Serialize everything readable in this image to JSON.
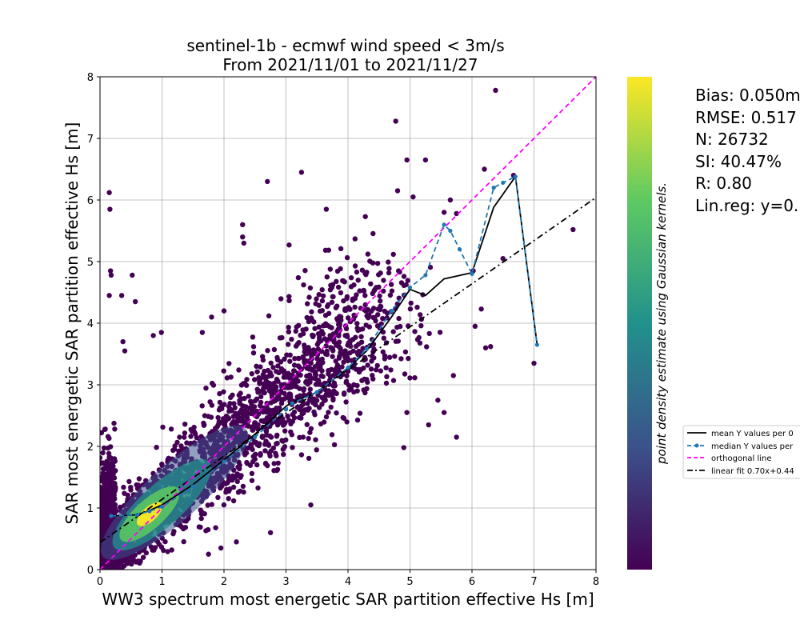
{
  "chart_data": {
    "type": "scatter",
    "title_line1": "sentinel-1b - ecmwf wind speed < 3m/s",
    "title_line2": "From 2021/11/01 to 2021/11/27",
    "xlabel": "WW3 spectrum most energetic SAR partition effective Hs [m]",
    "ylabel": "SAR most energetic SAR partition effective Hs [m]",
    "xlim": [
      0,
      8
    ],
    "ylim": [
      0,
      8
    ],
    "xticks": [
      "0",
      "1",
      "2",
      "3",
      "4",
      "5",
      "6",
      "7",
      "8"
    ],
    "yticks": [
      "0",
      "1",
      "2",
      "3",
      "4",
      "5",
      "6",
      "7",
      "8"
    ],
    "grid": true,
    "colorbar_label": "point density estimate using Gaussian kernels.",
    "colormap": [
      "#440154",
      "#3b528b",
      "#21918c",
      "#5ec962",
      "#fde725"
    ],
    "density_peak": {
      "x": 0.8,
      "y": 0.9
    },
    "point_count": 26732,
    "series": [
      {
        "name": "mean Y values per 0",
        "color": "#000000",
        "style": "solid",
        "points": [
          [
            0.18,
            0.87
          ],
          [
            0.6,
            0.89
          ],
          [
            0.8,
            0.96
          ],
          [
            1.0,
            1.05
          ],
          [
            1.5,
            1.38
          ],
          [
            2.0,
            1.78
          ],
          [
            2.5,
            2.2
          ],
          [
            3.0,
            2.65
          ],
          [
            3.1,
            2.72
          ],
          [
            3.5,
            2.88
          ],
          [
            4.0,
            3.27
          ],
          [
            4.3,
            3.55
          ],
          [
            4.7,
            4.1
          ],
          [
            5.0,
            4.55
          ],
          [
            5.25,
            4.45
          ],
          [
            5.55,
            4.72
          ],
          [
            6.0,
            4.82
          ],
          [
            6.35,
            5.88
          ],
          [
            6.7,
            6.38
          ],
          [
            7.05,
            3.65
          ]
        ]
      },
      {
        "name": "median Y values per",
        "color": "#1f77b4",
        "style": "dashed-dot-markers",
        "points": [
          [
            0.18,
            0.87
          ],
          [
            0.6,
            0.89
          ],
          [
            0.8,
            0.95
          ],
          [
            1.0,
            1.02
          ],
          [
            1.5,
            1.35
          ],
          [
            2.0,
            1.75
          ],
          [
            2.5,
            2.15
          ],
          [
            3.0,
            2.6
          ],
          [
            3.1,
            2.7
          ],
          [
            3.5,
            2.88
          ],
          [
            4.0,
            3.28
          ],
          [
            4.3,
            3.58
          ],
          [
            4.7,
            4.2
          ],
          [
            5.0,
            4.58
          ],
          [
            5.25,
            4.78
          ],
          [
            5.55,
            5.6
          ],
          [
            5.65,
            5.5
          ],
          [
            5.8,
            5.2
          ],
          [
            6.0,
            4.8
          ],
          [
            6.35,
            6.2
          ],
          [
            6.5,
            6.28
          ],
          [
            6.7,
            6.38
          ],
          [
            7.05,
            3.65
          ]
        ]
      },
      {
        "name": "orthogonal line",
        "color": "#ff00ff",
        "style": "dashed",
        "points": [
          [
            0,
            0
          ],
          [
            8,
            8
          ]
        ]
      },
      {
        "name": "linear fit 0.70x+0.44",
        "color": "#000000",
        "style": "dashdot",
        "points": [
          [
            0,
            0.44
          ],
          [
            8,
            6.04
          ]
        ]
      }
    ],
    "outliers": [
      [
        0.16,
        5.85
      ],
      [
        0.15,
        6.12
      ],
      [
        0.18,
        4.78
      ],
      [
        0.17,
        4.85
      ],
      [
        0.52,
        4.78
      ],
      [
        0.57,
        4.35
      ],
      [
        0.15,
        4.45
      ],
      [
        0.37,
        3.7
      ],
      [
        0.4,
        3.55
      ],
      [
        0.86,
        3.8
      ],
      [
        0.99,
        3.85
      ],
      [
        2.7,
        6.3
      ],
      [
        3.25,
        6.45
      ],
      [
        4.77,
        7.28
      ],
      [
        6.38,
        7.78
      ],
      [
        4.95,
        6.65
      ],
      [
        5.25,
        6.65
      ],
      [
        4.8,
        6.15
      ],
      [
        5.05,
        6.05
      ],
      [
        6.2,
        6.5
      ],
      [
        6.67,
        6.4
      ],
      [
        5.65,
        6.0
      ],
      [
        7.63,
        5.52
      ],
      [
        5.75,
        2.15
      ],
      [
        5.55,
        2.55
      ],
      [
        5.7,
        3.15
      ],
      [
        6.05,
        3.95
      ],
      [
        7.0,
        3.35
      ],
      [
        6.22,
        3.6
      ],
      [
        6.3,
        3.62
      ],
      [
        6.15,
        4.23
      ],
      [
        6.02,
        4.85
      ],
      [
        6.5,
        5.05
      ],
      [
        2.3,
        5.4
      ],
      [
        2.32,
        5.3
      ],
      [
        2.3,
        5.6
      ],
      [
        3.05,
        5.27
      ],
      [
        3.65,
        5.85
      ],
      [
        4.28,
        5.73
      ],
      [
        5.55,
        5.8
      ],
      [
        5.75,
        5.78
      ],
      [
        1.8,
        4.1
      ],
      [
        2.0,
        4.2
      ],
      [
        1.65,
        3.85
      ],
      [
        0.35,
        4.45
      ],
      [
        3.4,
        1.05
      ],
      [
        2.75,
        0.6
      ],
      [
        2.2,
        0.45
      ],
      [
        1.75,
        0.25
      ],
      [
        1.95,
        0.35
      ],
      [
        4.9,
        1.98
      ],
      [
        4.95,
        2.55
      ],
      [
        5.3,
        2.35
      ],
      [
        5.45,
        2.75
      ]
    ]
  },
  "legend": {
    "placement": "right",
    "entries": [
      "mean Y values per 0",
      "median Y values per",
      "orthogonal line",
      "linear fit 0.70x+0.44"
    ]
  },
  "stats": {
    "bias": "Bias: 0.050m",
    "rmse": "RMSE: 0.517",
    "n": "N: 26732",
    "si": "SI: 40.47%",
    "r": "R: 0.80",
    "linreg": "Lin.reg: y=0."
  }
}
